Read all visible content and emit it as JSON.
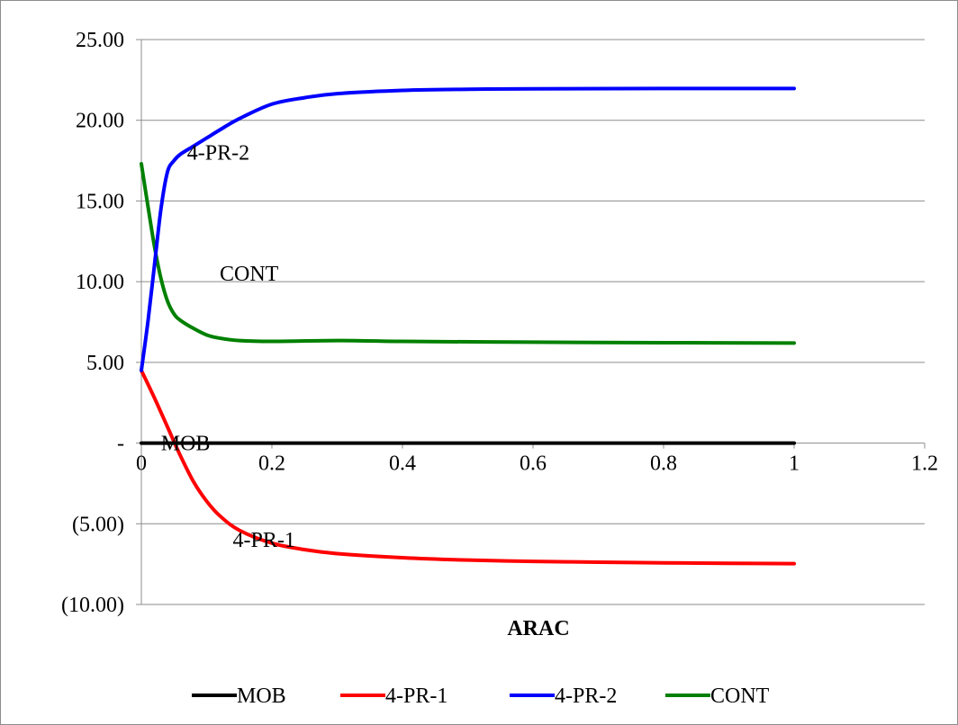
{
  "chart_data": {
    "type": "line",
    "title": "",
    "xlabel": "ARAC",
    "ylabel": "",
    "xlim": [
      0,
      1.2
    ],
    "ylim": [
      -10,
      25
    ],
    "x_ticks": [
      0,
      0.2,
      0.4,
      0.6,
      0.8,
      1,
      1.2
    ],
    "x_tick_labels": [
      "0",
      "0.2",
      "0.4",
      "0.6",
      "0.8",
      "1",
      "1.2"
    ],
    "y_ticks": [
      25,
      20,
      15,
      10,
      5,
      0,
      -5,
      -10
    ],
    "y_tick_labels": [
      "25.00",
      "20.00",
      "15.00",
      "10.00",
      "5.00",
      "-",
      "(5.00)",
      "(10.00)"
    ],
    "grid": true,
    "legend_position": "bottom",
    "series": [
      {
        "name": "MOB",
        "color": "#000000",
        "x": [
          0,
          0.1,
          0.2,
          0.4,
          0.6,
          0.8,
          1
        ],
        "y": [
          0,
          0,
          0,
          0,
          0,
          0,
          0
        ],
        "label": "MOB",
        "label_at": [
          0.03,
          0
        ]
      },
      {
        "name": "4-PR-1",
        "color": "#ff0000",
        "x": [
          0,
          0.02,
          0.04,
          0.06,
          0.08,
          0.1,
          0.12,
          0.15,
          0.2,
          0.25,
          0.3,
          0.4,
          0.5,
          0.6,
          0.7,
          0.8,
          0.9,
          1
        ],
        "y": [
          4.5,
          2.8,
          1.0,
          -0.8,
          -2.4,
          -3.6,
          -4.5,
          -5.4,
          -6.2,
          -6.6,
          -6.85,
          -7.1,
          -7.25,
          -7.33,
          -7.38,
          -7.42,
          -7.45,
          -7.47
        ],
        "label": "4-PR-1",
        "label_at": [
          0.14,
          -6.0
        ]
      },
      {
        "name": "4-PR-2",
        "color": "#0000ff",
        "x": [
          0,
          0.01,
          0.02,
          0.03,
          0.04,
          0.05,
          0.06,
          0.08,
          0.1,
          0.12,
          0.15,
          0.2,
          0.25,
          0.3,
          0.4,
          0.5,
          0.6,
          0.8,
          1
        ],
        "y": [
          4.5,
          7.5,
          11.0,
          14.5,
          16.8,
          17.5,
          17.9,
          18.4,
          18.9,
          19.4,
          20.1,
          21.0,
          21.4,
          21.65,
          21.85,
          21.92,
          21.95,
          21.97,
          21.97
        ],
        "label": "4-PR-2",
        "label_at": [
          0.07,
          18.0
        ]
      },
      {
        "name": "CONT",
        "color": "#008000",
        "x": [
          0,
          0.01,
          0.02,
          0.03,
          0.04,
          0.05,
          0.06,
          0.08,
          0.1,
          0.12,
          0.15,
          0.2,
          0.3,
          0.4,
          0.6,
          0.8,
          1
        ],
        "y": [
          17.3,
          14.7,
          12.2,
          10.2,
          8.8,
          8.0,
          7.6,
          7.1,
          6.7,
          6.5,
          6.35,
          6.3,
          6.35,
          6.3,
          6.25,
          6.22,
          6.2
        ],
        "label": "CONT",
        "label_at": [
          0.12,
          10.5
        ]
      }
    ]
  }
}
